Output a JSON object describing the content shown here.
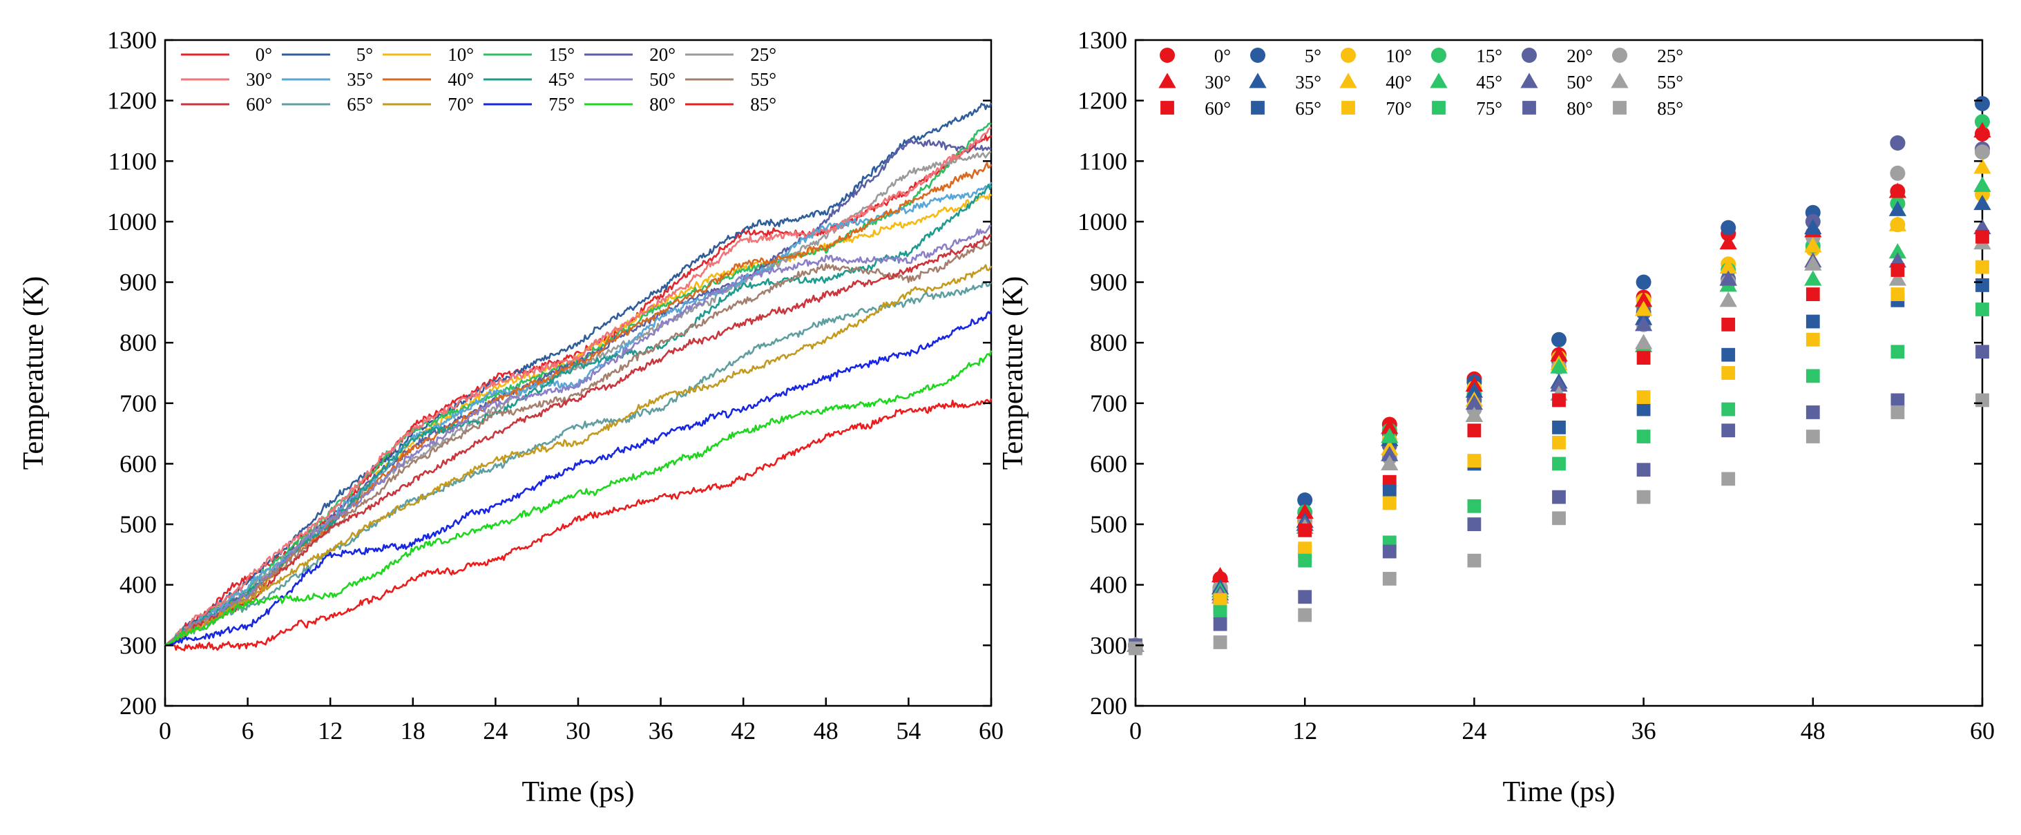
{
  "chart_data": [
    {
      "type": "line",
      "title": "",
      "xlabel": "Time (ps)",
      "ylabel": "Temperature (K)",
      "xlim": [
        0,
        60
      ],
      "ylim": [
        200,
        1300
      ],
      "xticks": [
        "0",
        "6",
        "12",
        "18",
        "24",
        "30",
        "36",
        "42",
        "48",
        "54",
        "60"
      ],
      "yticks": [
        "200",
        "300",
        "400",
        "500",
        "600",
        "700",
        "800",
        "900",
        "1000",
        "1100",
        "1200",
        "1300"
      ],
      "legend_position": "top-left",
      "x": [
        0,
        6,
        12,
        18,
        24,
        30,
        36,
        42,
        48,
        54,
        60
      ],
      "series": [
        {
          "name": "0°",
          "color": "#e3262b",
          "values": [
            300,
            415,
            505,
            665,
            740,
            780,
            875,
            980,
            980,
            1050,
            1145
          ]
        },
        {
          "name": "5°",
          "color": "#2f5d9b",
          "values": [
            300,
            405,
            535,
            650,
            735,
            800,
            895,
            990,
            1015,
            1130,
            1195
          ]
        },
        {
          "name": "10°",
          "color": "#f5b914",
          "values": [
            300,
            385,
            505,
            640,
            725,
            775,
            865,
            925,
            955,
            995,
            1045
          ]
        },
        {
          "name": "15°",
          "color": "#2fbf62",
          "values": [
            300,
            395,
            520,
            655,
            715,
            770,
            860,
            920,
            960,
            1030,
            1165
          ]
        },
        {
          "name": "20°",
          "color": "#5a5ea4",
          "values": [
            300,
            390,
            510,
            630,
            705,
            770,
            850,
            905,
            1000,
            1130,
            1120
          ]
        },
        {
          "name": "25°",
          "color": "#9a9a9a",
          "values": [
            300,
            395,
            510,
            610,
            690,
            760,
            830,
            900,
            975,
            1080,
            1115
          ]
        },
        {
          "name": "30°",
          "color": "#f07478",
          "values": [
            300,
            410,
            520,
            660,
            730,
            780,
            870,
            965,
            985,
            1050,
            1150
          ]
        },
        {
          "name": "35°",
          "color": "#58a6d6",
          "values": [
            300,
            395,
            505,
            640,
            720,
            735,
            840,
            905,
            990,
            1020,
            1060
          ]
        },
        {
          "name": "40°",
          "color": "#d9691f",
          "values": [
            300,
            380,
            500,
            625,
            705,
            765,
            855,
            925,
            960,
            1035,
            1090
          ]
        },
        {
          "name": "45°",
          "color": "#1f9a8e",
          "values": [
            300,
            390,
            500,
            645,
            680,
            760,
            795,
            895,
            905,
            950,
            1060
          ]
        },
        {
          "name": "50°",
          "color": "#8a7fc7",
          "values": [
            300,
            385,
            500,
            615,
            700,
            730,
            830,
            905,
            935,
            935,
            990
          ]
        },
        {
          "name": "55°",
          "color": "#a57f6e",
          "values": [
            300,
            380,
            495,
            600,
            680,
            715,
            800,
            870,
            930,
            905,
            965
          ]
        },
        {
          "name": "60°",
          "color": "#c9353b",
          "values": [
            300,
            375,
            490,
            570,
            655,
            705,
            775,
            830,
            880,
            920,
            975
          ]
        },
        {
          "name": "65°",
          "color": "#5f9ea0",
          "values": [
            300,
            360,
            455,
            540,
            600,
            660,
            690,
            780,
            835,
            870,
            895
          ]
        },
        {
          "name": "70°",
          "color": "#c49a1e",
          "values": [
            300,
            375,
            460,
            535,
            605,
            635,
            710,
            750,
            805,
            880,
            925
          ]
        },
        {
          "name": "75°",
          "color": "#1726e0",
          "values": [
            300,
            330,
            445,
            470,
            530,
            600,
            645,
            690,
            745,
            785,
            850
          ]
        },
        {
          "name": "80°",
          "color": "#1ed61e",
          "values": [
            300,
            370,
            380,
            455,
            500,
            550,
            590,
            655,
            690,
            705,
            780
          ]
        },
        {
          "name": "85°",
          "color": "#ea1c1c",
          "values": [
            300,
            300,
            345,
            410,
            440,
            505,
            545,
            575,
            645,
            685,
            705
          ]
        }
      ]
    },
    {
      "type": "scatter",
      "title": "",
      "xlabel": "Time (ps)",
      "ylabel": "Temperature (K)",
      "xlim": [
        0,
        60
      ],
      "ylim": [
        200,
        1300
      ],
      "xticks": [
        "0",
        "12",
        "24",
        "36",
        "48",
        "60"
      ],
      "yticks": [
        "200",
        "300",
        "400",
        "500",
        "600",
        "700",
        "800",
        "900",
        "1000",
        "1100",
        "1200",
        "1300"
      ],
      "legend_position": "top-left",
      "x": [
        0,
        6,
        12,
        18,
        24,
        30,
        36,
        42,
        48,
        54,
        60
      ],
      "series": [
        {
          "name": "0°",
          "marker": "circle",
          "color": "#e8141b",
          "values": [
            300,
            410,
            505,
            665,
            740,
            780,
            875,
            980,
            980,
            1050,
            1145
          ]
        },
        {
          "name": "5°",
          "marker": "circle",
          "color": "#2b5b9f",
          "values": [
            300,
            395,
            540,
            650,
            735,
            805,
            900,
            990,
            1015,
            1130,
            1195
          ]
        },
        {
          "name": "10°",
          "marker": "circle",
          "color": "#f9c00f",
          "values": [
            300,
            385,
            505,
            640,
            725,
            775,
            870,
            930,
            955,
            995,
            1045
          ]
        },
        {
          "name": "15°",
          "marker": "circle",
          "color": "#2dc46a",
          "values": [
            300,
            395,
            520,
            655,
            715,
            770,
            860,
            920,
            960,
            1030,
            1165
          ]
        },
        {
          "name": "20°",
          "marker": "circle",
          "color": "#5b609f",
          "values": [
            300,
            390,
            510,
            630,
            705,
            770,
            850,
            905,
            1000,
            1130,
            1120
          ]
        },
        {
          "name": "25°",
          "marker": "circle",
          "color": "#a0a0a0",
          "values": [
            300,
            395,
            510,
            610,
            690,
            760,
            830,
            900,
            975,
            1080,
            1115
          ]
        },
        {
          "name": "30°",
          "marker": "triangle",
          "color": "#e8141b",
          "values": [
            300,
            415,
            520,
            660,
            730,
            780,
            870,
            965,
            985,
            1050,
            1150
          ]
        },
        {
          "name": "35°",
          "marker": "triangle",
          "color": "#2b5b9f",
          "values": [
            300,
            395,
            505,
            640,
            720,
            735,
            840,
            905,
            990,
            1020,
            1030
          ]
        },
        {
          "name": "40°",
          "marker": "triangle",
          "color": "#f9c00f",
          "values": [
            300,
            380,
            500,
            625,
            705,
            765,
            855,
            925,
            960,
            995,
            1090
          ]
        },
        {
          "name": "45°",
          "marker": "triangle",
          "color": "#2dc46a",
          "values": [
            300,
            390,
            500,
            645,
            680,
            760,
            795,
            895,
            905,
            950,
            1060
          ]
        },
        {
          "name": "50°",
          "marker": "triangle",
          "color": "#5b609f",
          "values": [
            300,
            385,
            500,
            615,
            700,
            730,
            830,
            905,
            935,
            935,
            990
          ]
        },
        {
          "name": "55°",
          "marker": "triangle",
          "color": "#a0a0a0",
          "values": [
            300,
            380,
            495,
            600,
            680,
            715,
            800,
            870,
            930,
            905,
            965
          ]
        },
        {
          "name": "60°",
          "marker": "square",
          "color": "#e8141b",
          "values": [
            300,
            375,
            490,
            570,
            655,
            705,
            775,
            830,
            880,
            920,
            975
          ]
        },
        {
          "name": "65°",
          "marker": "square",
          "color": "#2b5b9f",
          "values": [
            300,
            360,
            455,
            555,
            600,
            660,
            690,
            780,
            835,
            870,
            895
          ]
        },
        {
          "name": "70°",
          "marker": "square",
          "color": "#f9c00f",
          "values": [
            300,
            375,
            460,
            535,
            605,
            635,
            710,
            750,
            805,
            880,
            925
          ]
        },
        {
          "name": "75°",
          "marker": "square",
          "color": "#2dc46a",
          "values": [
            300,
            355,
            440,
            470,
            530,
            600,
            645,
            690,
            745,
            785,
            855
          ]
        },
        {
          "name": "80°",
          "marker": "square",
          "color": "#5b609f",
          "values": [
            300,
            335,
            380,
            455,
            500,
            545,
            590,
            655,
            685,
            705,
            785
          ]
        },
        {
          "name": "85°",
          "marker": "square",
          "color": "#a0a0a0",
          "values": [
            295,
            305,
            350,
            410,
            440,
            510,
            545,
            575,
            645,
            685,
            705
          ]
        }
      ]
    }
  ]
}
